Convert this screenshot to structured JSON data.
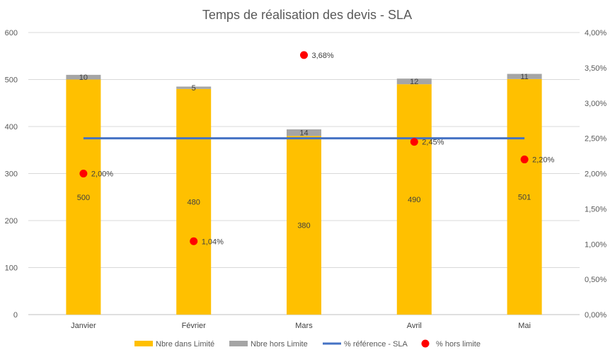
{
  "chart_data": {
    "type": "bar",
    "title": "Temps de réalisation des devis - SLA",
    "categories": [
      "Janvier",
      "Février",
      "Mars",
      "Avril",
      "Mai"
    ],
    "series": [
      {
        "name": "Nbre dans Limité",
        "kind": "stacked-bar",
        "axis": "left",
        "color": "#FFC000",
        "values": [
          500,
          480,
          380,
          490,
          501
        ],
        "labels": [
          "500",
          "480",
          "380",
          "490",
          "501"
        ]
      },
      {
        "name": "Nbre hors Limite",
        "kind": "stacked-bar",
        "axis": "left",
        "color": "#A5A5A5",
        "values": [
          10,
          5,
          14,
          12,
          11
        ],
        "labels": [
          "10",
          "5",
          "14",
          "12",
          "11"
        ]
      },
      {
        "name": "% référence - SLA",
        "kind": "line",
        "axis": "right",
        "color": "#4472C4",
        "values": [
          0.025,
          0.025,
          0.025,
          0.025,
          0.025
        ]
      },
      {
        "name": "% hors limite",
        "kind": "scatter",
        "axis": "right",
        "color": "#FF0000",
        "values": [
          0.02,
          0.0104,
          0.0368,
          0.0245,
          0.022
        ],
        "labels": [
          "2,00%",
          "1,04%",
          "3,68%",
          "2,45%",
          "2,20%"
        ]
      }
    ],
    "y_left": {
      "min": 0,
      "max": 600,
      "ticks": [
        "0",
        "100",
        "200",
        "300",
        "400",
        "500",
        "600"
      ]
    },
    "y_right": {
      "min": 0,
      "max": 0.04,
      "ticks": [
        "0,00%",
        "0,50%",
        "1,00%",
        "1,50%",
        "2,00%",
        "2,50%",
        "3,00%",
        "3,50%",
        "4,00%"
      ]
    },
    "grid": true,
    "legend_position": "bottom"
  }
}
